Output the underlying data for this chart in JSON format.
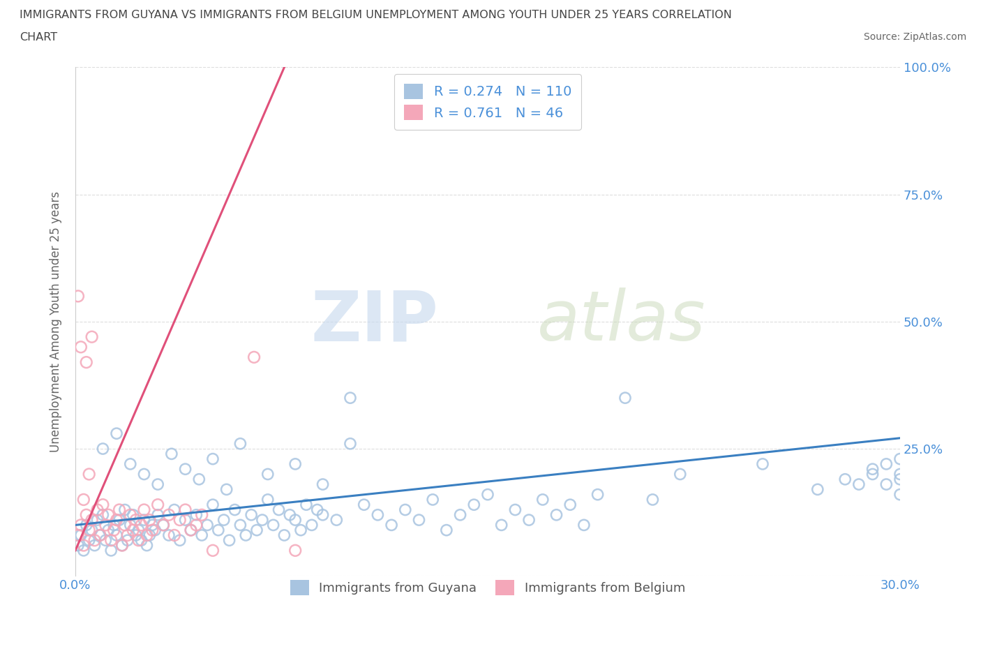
{
  "title_line1": "IMMIGRANTS FROM GUYANA VS IMMIGRANTS FROM BELGIUM UNEMPLOYMENT AMONG YOUTH UNDER 25 YEARS CORRELATION",
  "title_line2": "CHART",
  "source_text": "Source: ZipAtlas.com",
  "ylabel": "Unemployment Among Youth under 25 years",
  "xlim": [
    0.0,
    0.3
  ],
  "ylim": [
    0.0,
    1.0
  ],
  "xticks": [
    0.0,
    0.05,
    0.1,
    0.15,
    0.2,
    0.25,
    0.3
  ],
  "ytick_positions": [
    0.0,
    0.25,
    0.5,
    0.75,
    1.0
  ],
  "ytick_labels_right": [
    "",
    "25.0%",
    "50.0%",
    "75.0%",
    "100.0%"
  ],
  "guyana_color": "#a8c4e0",
  "belgium_color": "#f4a7b9",
  "guyana_line_color": "#3a7fc1",
  "belgium_line_color": "#e0507a",
  "guyana_R": 0.274,
  "guyana_N": 110,
  "belgium_R": 0.761,
  "belgium_N": 46,
  "legend_label_guyana": "Immigrants from Guyana",
  "legend_label_belgium": "Immigrants from Belgium",
  "watermark_zip": "ZIP",
  "watermark_atlas": "atlas",
  "background_color": "#ffffff",
  "grid_color": "#dddddd",
  "title_color": "#444444",
  "axis_label_color": "#666666",
  "tick_label_color": "#4a90d9",
  "guyana_x": [
    0.001,
    0.002,
    0.003,
    0.004,
    0.005,
    0.006,
    0.007,
    0.008,
    0.009,
    0.01,
    0.011,
    0.012,
    0.013,
    0.014,
    0.015,
    0.016,
    0.017,
    0.018,
    0.019,
    0.02,
    0.021,
    0.022,
    0.023,
    0.024,
    0.025,
    0.026,
    0.027,
    0.028,
    0.029,
    0.03,
    0.032,
    0.034,
    0.036,
    0.038,
    0.04,
    0.042,
    0.044,
    0.046,
    0.048,
    0.05,
    0.052,
    0.054,
    0.056,
    0.058,
    0.06,
    0.062,
    0.064,
    0.066,
    0.068,
    0.07,
    0.072,
    0.074,
    0.076,
    0.078,
    0.08,
    0.082,
    0.084,
    0.086,
    0.088,
    0.09,
    0.095,
    0.1,
    0.105,
    0.11,
    0.115,
    0.12,
    0.125,
    0.13,
    0.135,
    0.14,
    0.145,
    0.15,
    0.155,
    0.16,
    0.165,
    0.17,
    0.175,
    0.18,
    0.185,
    0.19,
    0.01,
    0.015,
    0.02,
    0.025,
    0.03,
    0.035,
    0.04,
    0.045,
    0.05,
    0.055,
    0.06,
    0.07,
    0.08,
    0.09,
    0.1,
    0.2,
    0.21,
    0.22,
    0.25,
    0.27,
    0.28,
    0.29,
    0.295,
    0.3,
    0.3,
    0.3,
    0.3,
    0.295,
    0.29,
    0.285
  ],
  "guyana_y": [
    0.06,
    0.08,
    0.05,
    0.1,
    0.07,
    0.09,
    0.06,
    0.11,
    0.08,
    0.12,
    0.07,
    0.09,
    0.05,
    0.1,
    0.08,
    0.11,
    0.06,
    0.13,
    0.07,
    0.1,
    0.12,
    0.08,
    0.09,
    0.07,
    0.11,
    0.06,
    0.08,
    0.1,
    0.09,
    0.12,
    0.1,
    0.08,
    0.13,
    0.07,
    0.11,
    0.09,
    0.12,
    0.08,
    0.1,
    0.14,
    0.09,
    0.11,
    0.07,
    0.13,
    0.1,
    0.08,
    0.12,
    0.09,
    0.11,
    0.15,
    0.1,
    0.13,
    0.08,
    0.12,
    0.11,
    0.09,
    0.14,
    0.1,
    0.13,
    0.12,
    0.11,
    0.35,
    0.14,
    0.12,
    0.1,
    0.13,
    0.11,
    0.15,
    0.09,
    0.12,
    0.14,
    0.16,
    0.1,
    0.13,
    0.11,
    0.15,
    0.12,
    0.14,
    0.1,
    0.16,
    0.25,
    0.28,
    0.22,
    0.2,
    0.18,
    0.24,
    0.21,
    0.19,
    0.23,
    0.17,
    0.26,
    0.2,
    0.22,
    0.18,
    0.26,
    0.35,
    0.15,
    0.2,
    0.22,
    0.17,
    0.19,
    0.21,
    0.18,
    0.2,
    0.16,
    0.23,
    0.19,
    0.22,
    0.2,
    0.18
  ],
  "belgium_x": [
    0.001,
    0.002,
    0.003,
    0.004,
    0.005,
    0.006,
    0.007,
    0.008,
    0.009,
    0.01,
    0.011,
    0.012,
    0.013,
    0.014,
    0.015,
    0.016,
    0.017,
    0.018,
    0.019,
    0.02,
    0.021,
    0.022,
    0.023,
    0.024,
    0.025,
    0.026,
    0.027,
    0.028,
    0.03,
    0.032,
    0.034,
    0.036,
    0.038,
    0.04,
    0.042,
    0.044,
    0.046,
    0.001,
    0.002,
    0.003,
    0.004,
    0.005,
    0.006,
    0.05,
    0.065,
    0.08
  ],
  "belgium_y": [
    0.08,
    0.1,
    0.06,
    0.12,
    0.09,
    0.11,
    0.07,
    0.13,
    0.08,
    0.14,
    0.1,
    0.12,
    0.07,
    0.09,
    0.11,
    0.13,
    0.06,
    0.1,
    0.08,
    0.12,
    0.09,
    0.11,
    0.07,
    0.1,
    0.13,
    0.08,
    0.11,
    0.09,
    0.14,
    0.1,
    0.12,
    0.08,
    0.11,
    0.13,
    0.09,
    0.1,
    0.12,
    0.55,
    0.45,
    0.15,
    0.42,
    0.2,
    0.47,
    0.05,
    0.43,
    0.05
  ]
}
